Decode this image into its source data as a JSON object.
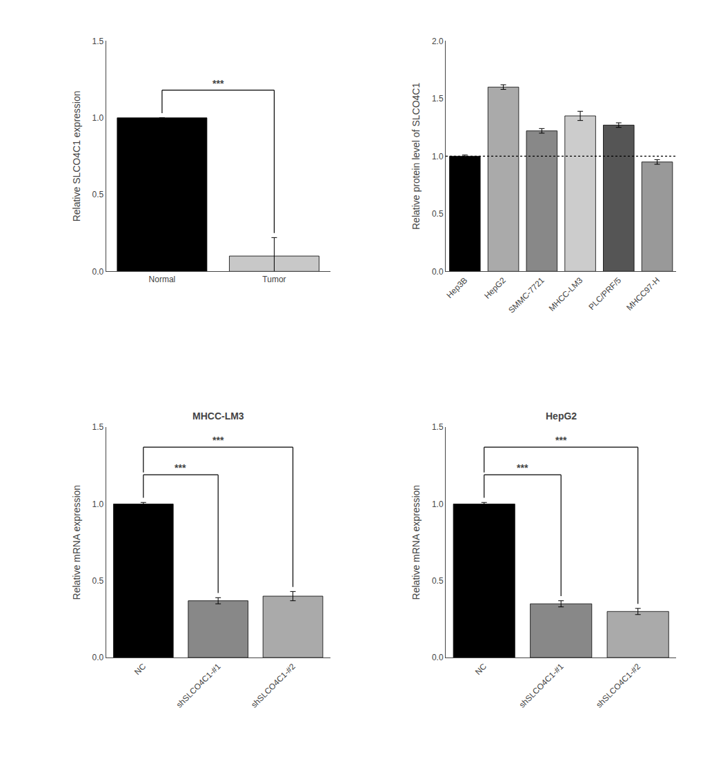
{
  "chart_data": [
    {
      "type": "bar",
      "categories": [
        "Normal",
        "Tumor"
      ],
      "values": [
        1.0,
        0.1
      ],
      "errors": [
        0.0,
        0.12
      ],
      "colors": [
        "#000000",
        "#c8c8c8"
      ],
      "ylabel": "Relative SLCO4C1 expression",
      "ylim": [
        0,
        1.5
      ],
      "yticks": [
        {
          "value": 0.0,
          "label": "0.0"
        },
        0.5,
        {
          "value": 1.0,
          "label": "1.0"
        },
        1.5
      ],
      "grid": false,
      "annotations": [
        {
          "text": "***",
          "categories": [
            "Normal",
            "Tumor"
          ]
        }
      ]
    },
    {
      "type": "bar",
      "categories": [
        "Hep3B",
        "HepG2",
        "SMMC-7721",
        "MHCC-LM3",
        "PLC/PRF/5",
        "MHCC97-H"
      ],
      "values": [
        1.0,
        1.6,
        1.22,
        1.35,
        1.27,
        0.95
      ],
      "errors": [
        0.01,
        0.02,
        0.02,
        0.04,
        0.02,
        0.02
      ],
      "colors": [
        "#000000",
        "#aaaaaa",
        "#888888",
        "#cccccc",
        "#555555",
        "#999999"
      ],
      "ylabel": "Relative protein level of SLCO4C1",
      "ylim": [
        0,
        2.0
      ],
      "yticks": [
        {
          "value": 0.0,
          "label": "0.0"
        },
        0.5,
        {
          "value": 1.0,
          "label": "1.0"
        },
        1.5,
        {
          "value": 2.0,
          "label": "2.0"
        }
      ],
      "grid": false,
      "hline": 1.0
    },
    {
      "type": "bar",
      "title": "MHCC-LM3",
      "categories": [
        "NC",
        "shSLCO4C1-#1",
        "shSLCO4C1-#2"
      ],
      "values": [
        1.0,
        0.37,
        0.4
      ],
      "errors": [
        0.01,
        0.02,
        0.03
      ],
      "colors": [
        "#000000",
        "#888888",
        "#aaaaaa"
      ],
      "ylabel": "Relative mRNA expression",
      "ylim": [
        0,
        1.5
      ],
      "yticks": [
        {
          "value": 0.0,
          "label": "0.0"
        },
        0.5,
        {
          "value": 1.0,
          "label": "1.0"
        },
        1.5
      ],
      "grid": false,
      "annotations": [
        {
          "text": "***",
          "categories": [
            "NC",
            "shSLCO4C1-#1"
          ]
        },
        {
          "text": "***",
          "categories": [
            "NC",
            "shSLCO4C1-#2"
          ]
        }
      ]
    },
    {
      "type": "bar",
      "title": "HepG2",
      "categories": [
        "NC",
        "shSLCO4C1-#1",
        "shSLCO4C1-#2"
      ],
      "values": [
        1.0,
        0.35,
        0.3
      ],
      "errors": [
        0.01,
        0.02,
        0.02
      ],
      "colors": [
        "#000000",
        "#888888",
        "#aaaaaa"
      ],
      "ylabel": "Relative mRNA expression",
      "ylim": [
        0,
        1.5
      ],
      "yticks": [
        {
          "value": 0.0,
          "label": "0.0"
        },
        0.5,
        {
          "value": 1.0,
          "label": "1.0"
        },
        1.5
      ],
      "grid": false,
      "annotations": [
        {
          "text": "***",
          "categories": [
            "NC",
            "shSLCO4C1-#1"
          ]
        },
        {
          "text": "***",
          "categories": [
            "NC",
            "shSLCO4C1-#2"
          ]
        }
      ]
    }
  ]
}
